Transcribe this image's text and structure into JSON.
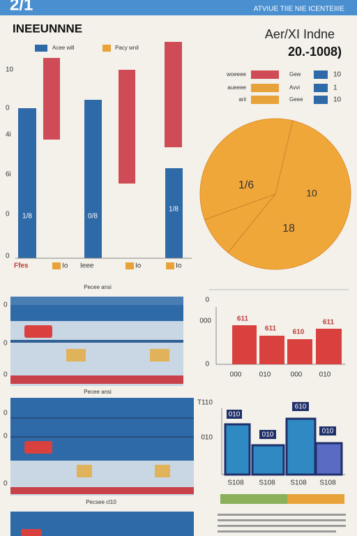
{
  "header": {
    "logo": "2/1",
    "tagline": "ATVIUE TIIE NIE ICENTEIIIE"
  },
  "left_panel": {
    "title": "INEEUNNNE",
    "legend": [
      "Acee will",
      "Pacy wnil"
    ],
    "y_labels": [
      "10",
      "0",
      "4i",
      "6i",
      "0",
      "0"
    ],
    "bar_labels": [
      "1/8",
      "0/8",
      "1/8"
    ],
    "x_labels": [
      "Ffes",
      "Io",
      "Ieee",
      "Io",
      "Io"
    ],
    "x_title": "Pecee ansi"
  },
  "right_panel": {
    "title": "Aer/XI Indne",
    "subtitle": "20.-1008)",
    "legend_left": [
      "woeeee",
      "aueeee",
      "arii"
    ],
    "legend_right": [
      "Gew",
      "Avvi",
      "Geee"
    ],
    "legend_values": [
      "10",
      "1",
      "10"
    ],
    "pie_labels": [
      "1/6",
      "10",
      "18"
    ]
  },
  "middle_left": {
    "y_labels": [
      "0",
      "0",
      "0"
    ],
    "caption": "Pecee ansi"
  },
  "middle_right": {
    "y_labels": [
      "0",
      "000",
      "0"
    ],
    "bar_labels": [
      "611",
      "611",
      "610",
      "611"
    ],
    "x_labels": [
      "000",
      "010",
      "000",
      "010"
    ]
  },
  "lower_left": {
    "y_labels": [
      "0",
      "0",
      "0"
    ],
    "caption": "Pecsee cl10"
  },
  "lower_right": {
    "y_labels": [
      "T110",
      "010"
    ],
    "bar_labels": [
      "010",
      "010",
      "610",
      "010"
    ],
    "x_labels": [
      "S108",
      "S108",
      "S108",
      "S108"
    ]
  }
}
